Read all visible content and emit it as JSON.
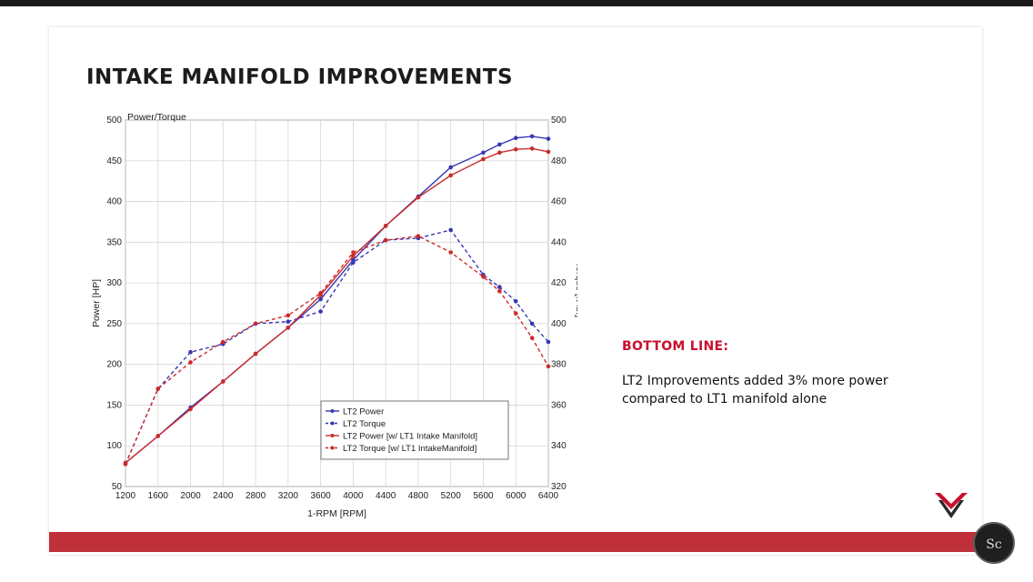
{
  "slide": {
    "title": "INTAKE MANIFOLD IMPROVEMENTS",
    "bottom_line_heading": "BOTTOM LINE:",
    "bottom_line_text": "LT2 Improvements added 3% more power compared to LT1 manifold alone",
    "badge_text": "Sc"
  },
  "colors": {
    "accent_red": "#c8102e",
    "footer_bar": "#c0303a",
    "series_blue": "#3737b4",
    "series_red": "#cc2a2a"
  },
  "icons": {
    "brand_logo": "crossed-flags-logo-icon",
    "badge": "channel-badge-icon"
  },
  "chart_data": {
    "type": "line",
    "title": "Power/Torque",
    "xlabel": "1-RPM [RPM]",
    "ylabel_left": "Power [HP]",
    "ylabel_right": "Torque [ft-lbf]",
    "xlim": [
      1200,
      6400
    ],
    "ylim_left": [
      50,
      500
    ],
    "ylim_right": [
      320,
      500
    ],
    "x_ticks": [
      1200,
      1600,
      2000,
      2400,
      2800,
      3200,
      3600,
      4000,
      4400,
      4800,
      5200,
      5600,
      6000,
      6400
    ],
    "y_ticks_left": [
      50,
      100,
      150,
      200,
      250,
      300,
      350,
      400,
      450,
      500
    ],
    "y_ticks_right": [
      320,
      340,
      360,
      380,
      400,
      420,
      440,
      460,
      480,
      500
    ],
    "grid": true,
    "legend_position": "lower-center",
    "series": [
      {
        "name": "LT2 Power",
        "axis": "left",
        "color": "#3737b4",
        "dash": false,
        "points": [
          [
            1200,
            79
          ],
          [
            1600,
            112
          ],
          [
            2000,
            147
          ],
          [
            2400,
            179
          ],
          [
            2800,
            213
          ],
          [
            3200,
            245
          ],
          [
            3600,
            280
          ],
          [
            4000,
            328
          ],
          [
            4400,
            370
          ],
          [
            4800,
            406
          ],
          [
            5200,
            442
          ],
          [
            5600,
            460
          ],
          [
            5800,
            470
          ],
          [
            6000,
            478
          ],
          [
            6200,
            480
          ],
          [
            6400,
            477
          ]
        ]
      },
      {
        "name": "LT2 Torque",
        "axis": "right",
        "color": "#3737b4",
        "dash": true,
        "points": [
          [
            1200,
            331
          ],
          [
            1600,
            368
          ],
          [
            2000,
            386
          ],
          [
            2400,
            390
          ],
          [
            2800,
            400
          ],
          [
            3200,
            401
          ],
          [
            3600,
            406
          ],
          [
            4000,
            430
          ],
          [
            4400,
            441
          ],
          [
            4800,
            442
          ],
          [
            5200,
            446
          ],
          [
            5600,
            424
          ],
          [
            5800,
            418
          ],
          [
            6000,
            411
          ],
          [
            6200,
            400
          ],
          [
            6400,
            391
          ]
        ]
      },
      {
        "name": "LT2 Power [w/ LT1 Intake Manifold]",
        "axis": "left",
        "color": "#cc2a2a",
        "dash": false,
        "points": [
          [
            1200,
            79
          ],
          [
            1600,
            112
          ],
          [
            2000,
            145
          ],
          [
            2400,
            179
          ],
          [
            2800,
            213
          ],
          [
            3200,
            245
          ],
          [
            3600,
            285
          ],
          [
            4000,
            333
          ],
          [
            4400,
            370
          ],
          [
            4800,
            405
          ],
          [
            5200,
            432
          ],
          [
            5600,
            452
          ],
          [
            5800,
            460
          ],
          [
            6000,
            464
          ],
          [
            6200,
            465
          ],
          [
            6400,
            461
          ]
        ]
      },
      {
        "name": "LT2 Torque [w/ LT1 IntakeManifold]",
        "axis": "right",
        "color": "#cc2a2a",
        "dash": true,
        "points": [
          [
            1200,
            331
          ],
          [
            1600,
            368
          ],
          [
            2000,
            381
          ],
          [
            2400,
            391
          ],
          [
            2800,
            400
          ],
          [
            3200,
            404
          ],
          [
            3600,
            415
          ],
          [
            4000,
            435
          ],
          [
            4400,
            441
          ],
          [
            4800,
            443
          ],
          [
            5200,
            435
          ],
          [
            5600,
            423
          ],
          [
            5800,
            416
          ],
          [
            6000,
            405
          ],
          [
            6200,
            393
          ],
          [
            6400,
            379
          ]
        ]
      }
    ]
  }
}
